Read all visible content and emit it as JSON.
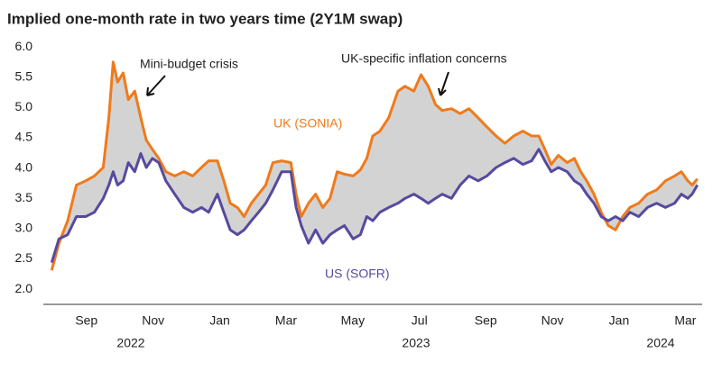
{
  "chart_data": {
    "type": "line",
    "title": "Implied one-month rate in two years time (2Y1M swap)",
    "annotations": [
      "Mini-budget crisis",
      "UK-specific inflation concerns"
    ],
    "years": [
      "2022",
      "2023",
      "2024"
    ],
    "xlim": [
      2022.6,
      2024.25
    ],
    "xticks": [
      {
        "value": 2022.708,
        "label": "Sep"
      },
      {
        "value": 2022.875,
        "label": "Nov"
      },
      {
        "value": 2023.042,
        "label": "Jan"
      },
      {
        "value": 2023.208,
        "label": "Mar"
      },
      {
        "value": 2023.375,
        "label": "May"
      },
      {
        "value": 2023.542,
        "label": "Jul"
      },
      {
        "value": 2023.708,
        "label": "Sep"
      },
      {
        "value": 2023.875,
        "label": "Nov"
      },
      {
        "value": 2024.042,
        "label": "Jan"
      },
      {
        "value": 2024.208,
        "label": "Mar"
      }
    ],
    "ylim": [
      1.75,
      6.15
    ],
    "yticks": [
      {
        "value": 2,
        "label": "2.0"
      },
      2.5,
      {
        "value": 3,
        "label": "3.0"
      },
      3.5,
      {
        "value": 4,
        "label": "4.0"
      },
      4.5,
      {
        "value": 5,
        "label": "5.0"
      },
      5.5,
      {
        "value": 6,
        "label": "6.0"
      }
    ],
    "fill_between": true,
    "fill_color": "#d3d3d3",
    "x": [
      2022.621,
      2022.639,
      2022.661,
      2022.683,
      2022.706,
      2022.728,
      2022.75,
      2022.764,
      2022.775,
      2022.786,
      2022.8,
      2022.813,
      2022.829,
      2022.844,
      2022.858,
      2022.873,
      2022.889,
      2022.907,
      2022.929,
      2022.952,
      2022.974,
      2022.996,
      2023.014,
      2023.036,
      2023.052,
      2023.068,
      2023.086,
      2023.103,
      2023.121,
      2023.139,
      2023.157,
      2023.175,
      2023.197,
      2023.22,
      2023.233,
      2023.246,
      2023.264,
      2023.282,
      2023.3,
      2023.318,
      2023.336,
      2023.354,
      2023.376,
      2023.394,
      2023.41,
      2023.425,
      2023.443,
      2023.465,
      2023.488,
      2023.506,
      2023.528,
      2023.546,
      2023.564,
      2023.582,
      2023.599,
      2023.622,
      2023.644,
      2023.666,
      2023.689,
      2023.711,
      2023.734,
      2023.756,
      2023.778,
      2023.801,
      2023.823,
      2023.841,
      2023.856,
      2023.872,
      2023.89,
      2023.912,
      2023.93,
      2023.946,
      2023.961,
      2023.979,
      2023.997,
      2024.015,
      2024.033,
      2024.051,
      2024.069,
      2024.091,
      2024.113,
      2024.136,
      2024.158,
      2024.181,
      2024.198,
      2024.214,
      2024.225,
      2024.238
    ],
    "series": [
      {
        "name": "UK (SONIA)",
        "color": "#f07a1a",
        "values": [
          2.31,
          2.76,
          3.13,
          3.72,
          3.79,
          3.87,
          4.01,
          4.83,
          5.75,
          5.42,
          5.57,
          5.13,
          5.27,
          4.83,
          4.46,
          4.31,
          4.16,
          3.94,
          3.87,
          3.94,
          3.87,
          4.01,
          4.12,
          4.12,
          3.79,
          3.42,
          3.35,
          3.2,
          3.42,
          3.57,
          3.72,
          4.09,
          4.12,
          4.09,
          3.57,
          3.2,
          3.42,
          3.57,
          3.35,
          3.5,
          3.94,
          3.9,
          3.87,
          3.97,
          4.16,
          4.53,
          4.61,
          4.83,
          5.27,
          5.35,
          5.27,
          5.54,
          5.35,
          5.05,
          4.95,
          4.98,
          4.9,
          4.98,
          4.83,
          4.68,
          4.53,
          4.41,
          4.53,
          4.61,
          4.53,
          4.53,
          4.31,
          4.06,
          4.21,
          4.09,
          4.16,
          3.94,
          3.79,
          3.57,
          3.27,
          3.05,
          2.98,
          3.2,
          3.35,
          3.42,
          3.57,
          3.64,
          3.79,
          3.87,
          3.94,
          3.79,
          3.72,
          3.82
        ]
      },
      {
        "name": "US (SOFR)",
        "color": "#564a9f",
        "values": [
          2.44,
          2.83,
          2.9,
          3.2,
          3.2,
          3.27,
          3.5,
          3.72,
          3.94,
          3.72,
          3.79,
          4.09,
          3.94,
          4.24,
          4.01,
          4.16,
          4.09,
          3.79,
          3.57,
          3.35,
          3.27,
          3.35,
          3.27,
          3.57,
          3.27,
          2.98,
          2.9,
          2.98,
          3.13,
          3.27,
          3.42,
          3.64,
          3.94,
          3.94,
          3.35,
          3.05,
          2.76,
          2.98,
          2.76,
          2.9,
          2.98,
          3.05,
          2.83,
          2.9,
          3.2,
          3.13,
          3.27,
          3.35,
          3.42,
          3.5,
          3.57,
          3.5,
          3.42,
          3.5,
          3.57,
          3.5,
          3.72,
          3.87,
          3.79,
          3.87,
          4.01,
          4.09,
          4.16,
          4.06,
          4.12,
          4.31,
          4.12,
          3.94,
          4.01,
          3.94,
          3.79,
          3.72,
          3.57,
          3.42,
          3.2,
          3.13,
          3.2,
          3.13,
          3.27,
          3.2,
          3.35,
          3.42,
          3.35,
          3.42,
          3.57,
          3.5,
          3.57,
          3.72
        ]
      }
    ]
  }
}
